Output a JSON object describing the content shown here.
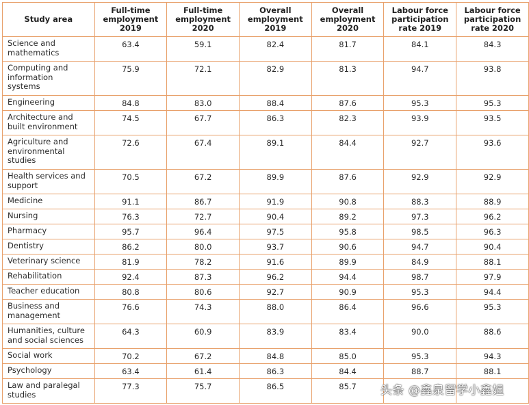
{
  "headers": [
    "Study area",
    "Full-time employment 2019",
    "Full-time employment 2020",
    "Overall employment 2019",
    "Overall employment 2020",
    "Labour force participation rate 2019",
    "Labour force participation rate 2020"
  ],
  "header_lines": [
    [
      "Study area"
    ],
    [
      "Full-time",
      "employment",
      "2019"
    ],
    [
      "Full-time",
      "employment",
      "2020"
    ],
    [
      "Overall",
      "employment",
      "2019"
    ],
    [
      "Overall",
      "employment",
      "2020"
    ],
    [
      "Labour force",
      "participation",
      "rate 2019"
    ],
    [
      "Labour force",
      "participation",
      "rate 2020"
    ]
  ],
  "rows": [
    {
      "lines": [
        "Science and",
        "mathematics"
      ],
      "values": [
        "63.4",
        "59.1",
        "82.4",
        "81.7",
        "84.1",
        "84.3"
      ]
    },
    {
      "lines": [
        "Computing and",
        "information",
        "systems"
      ],
      "values": [
        "75.9",
        "72.1",
        "82.9",
        "81.3",
        "94.7",
        "93.8"
      ]
    },
    {
      "lines": [
        "Engineering"
      ],
      "values": [
        "84.8",
        "83.0",
        "88.4",
        "87.6",
        "95.3",
        "95.3"
      ]
    },
    {
      "lines": [
        "Architecture and",
        "built environment"
      ],
      "values": [
        "74.5",
        "67.7",
        "86.3",
        "82.3",
        "93.9",
        "93.5"
      ]
    },
    {
      "lines": [
        "Agriculture and",
        "environmental",
        "studies"
      ],
      "values": [
        "72.6",
        "67.4",
        "89.1",
        "84.4",
        "92.7",
        "93.6"
      ]
    },
    {
      "lines": [
        "Health services and",
        "support"
      ],
      "values": [
        "70.5",
        "67.2",
        "89.9",
        "87.6",
        "92.9",
        "92.9"
      ]
    },
    {
      "lines": [
        "Medicine"
      ],
      "values": [
        "91.1",
        "86.7",
        "91.9",
        "90.8",
        "88.3",
        "88.9"
      ]
    },
    {
      "lines": [
        "Nursing"
      ],
      "values": [
        "76.3",
        "72.7",
        "90.4",
        "89.2",
        "97.3",
        "96.2"
      ]
    },
    {
      "lines": [
        "Pharmacy"
      ],
      "values": [
        "95.7",
        "96.4",
        "97.5",
        "95.8",
        "98.5",
        "96.3"
      ]
    },
    {
      "lines": [
        "Dentistry"
      ],
      "values": [
        "86.2",
        "80.0",
        "93.7",
        "90.6",
        "94.7",
        "90.4"
      ]
    },
    {
      "lines": [
        "Veterinary science"
      ],
      "values": [
        "81.9",
        "78.2",
        "91.6",
        "89.9",
        "84.9",
        "88.1"
      ]
    },
    {
      "lines": [
        "Rehabilitation"
      ],
      "values": [
        "92.4",
        "87.3",
        "96.2",
        "94.4",
        "98.7",
        "97.9"
      ]
    },
    {
      "lines": [
        "Teacher education"
      ],
      "values": [
        "80.8",
        "80.6",
        "92.7",
        "90.9",
        "95.3",
        "94.4"
      ]
    },
    {
      "lines": [
        "Business and",
        "management"
      ],
      "values": [
        "76.6",
        "74.3",
        "88.0",
        "86.4",
        "96.6",
        "95.3"
      ]
    },
    {
      "lines": [
        "Humanities, culture",
        "and social sciences"
      ],
      "values": [
        "64.3",
        "60.9",
        "83.9",
        "83.4",
        "90.0",
        "88.6"
      ]
    },
    {
      "lines": [
        "Social work"
      ],
      "values": [
        "70.2",
        "67.2",
        "84.8",
        "85.0",
        "95.3",
        "94.3"
      ]
    },
    {
      "lines": [
        "Psychology"
      ],
      "values": [
        "63.4",
        "61.4",
        "86.3",
        "84.4",
        "88.7",
        "88.1"
      ]
    },
    {
      "lines": [
        "Law and paralegal",
        "studies"
      ],
      "values": [
        "77.3",
        "75.7",
        "86.5",
        "85.7",
        "",
        ""
      ]
    }
  ],
  "watermark": "头条 @鑫泉留学小鑫姐"
}
